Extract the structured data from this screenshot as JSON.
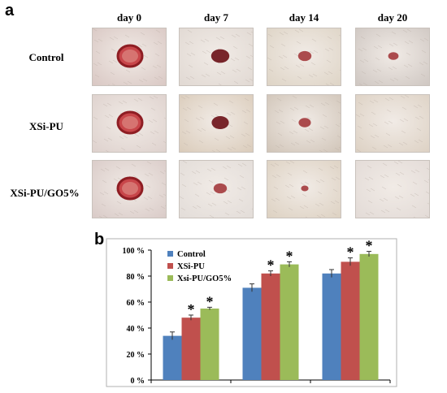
{
  "figure": {
    "panel_a_label": "a",
    "panel_b_label": "b",
    "column_headers": [
      "day 0",
      "day 7",
      "day 14",
      "day 20"
    ],
    "row_headers": [
      "Control",
      "XSi-PU",
      "XSi-PU/GO5%"
    ]
  },
  "photos": [
    [
      {
        "wound": 1.0,
        "bg": "#d8c6c2"
      },
      {
        "wound": 0.6,
        "bg": "#e0d8d2"
      },
      {
        "wound": 0.35,
        "bg": "#ddd3c4"
      },
      {
        "wound": 0.2,
        "bg": "#cdc5c0"
      }
    ],
    [
      {
        "wound": 1.0,
        "bg": "#ddd0cc"
      },
      {
        "wound": 0.55,
        "bg": "#d9cab8"
      },
      {
        "wound": 0.3,
        "bg": "#cfc3b6"
      },
      {
        "wound": 0.0,
        "bg": "#dcd0c2"
      }
    ],
    [
      {
        "wound": 1.0,
        "bg": "#d8c9c6"
      },
      {
        "wound": 0.35,
        "bg": "#e2dcd8"
      },
      {
        "wound": 0.05,
        "bg": "#dcd0c0"
      },
      {
        "wound": 0.0,
        "bg": "#e2dad6"
      }
    ]
  ],
  "chart_data": {
    "type": "bar",
    "categories": [
      "",
      "",
      ""
    ],
    "series": [
      {
        "name": "Control",
        "color": "#4f81bd",
        "values": [
          34,
          71,
          82
        ],
        "errors": [
          3,
          3,
          3
        ],
        "significant": [
          false,
          false,
          false
        ]
      },
      {
        "name": "XSi-PU",
        "color": "#c0504d",
        "values": [
          48,
          82,
          91
        ],
        "errors": [
          2,
          2,
          3
        ],
        "significant": [
          true,
          true,
          true
        ]
      },
      {
        "name": "Xsi-PU/GO5%",
        "color": "#9bbb59",
        "values": [
          55,
          89,
          97
        ],
        "errors": [
          1,
          2,
          2
        ],
        "significant": [
          true,
          true,
          true
        ]
      }
    ],
    "y_ticks": [
      "0 %",
      "20 %",
      "40 %",
      "60 %",
      "80 %",
      "100 %"
    ],
    "ylim": [
      0,
      100
    ],
    "significance_marker": "*",
    "legend_position": "top-left",
    "grid": false
  }
}
